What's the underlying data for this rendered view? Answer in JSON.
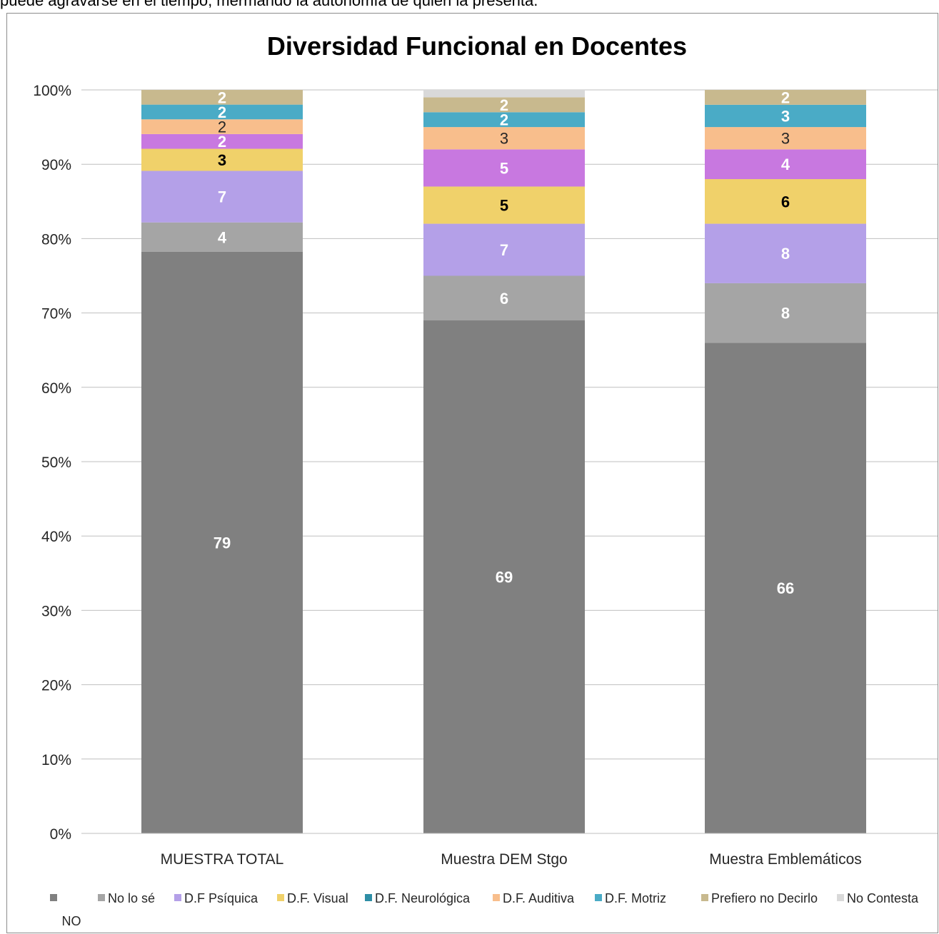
{
  "page_text": {
    "top_line": "puede agravarse en el tiempo, mermando la autonomía de quien la presenta."
  },
  "chart_data": {
    "type": "bar",
    "stacked": true,
    "percent_stacked": true,
    "title": "Diversidad Funcional en Docentes",
    "xlabel": "",
    "ylabel": "",
    "ylim": [
      0,
      100
    ],
    "y_ticks": [
      "0%",
      "10%",
      "20%",
      "30%",
      "40%",
      "50%",
      "60%",
      "70%",
      "80%",
      "90%",
      "100%"
    ],
    "grid": true,
    "legend_position": "bottom",
    "categories": [
      "MUESTRA TOTAL",
      "Muestra DEM Stgo",
      "Muestra Emblemáticos"
    ],
    "series": [
      {
        "name": "NO",
        "color": "#808080",
        "values": [
          79,
          69,
          66
        ],
        "labels": [
          "79",
          "69",
          "66"
        ],
        "label_color": "#ffffff",
        "label_bold": true
      },
      {
        "name": "No lo sé",
        "color": "#a5a5a5",
        "values": [
          4,
          6,
          8
        ],
        "labels": [
          "4",
          "6",
          "8"
        ],
        "label_color": "#ffffff",
        "label_bold": true
      },
      {
        "name": "D.F Psíquica",
        "color": "#b4a0e8",
        "values": [
          7,
          7,
          8
        ],
        "labels": [
          "7",
          "7",
          "8"
        ],
        "label_color": "#ffffff",
        "label_bold": true
      },
      {
        "name": "D.F. Visual",
        "color": "#f0d16a",
        "values": [
          3,
          5,
          6
        ],
        "labels": [
          "3",
          "5",
          "6"
        ],
        "label_color": "#000000",
        "label_bold": true
      },
      {
        "name": "D.F. Neurológica",
        "color": "#c878e0",
        "values": [
          2,
          5,
          4
        ],
        "labels": [
          "2",
          "5",
          "4"
        ],
        "label_color": "#ffffff",
        "label_bold": true
      },
      {
        "name": "D.F. Auditiva",
        "color": "#f8be8c",
        "values": [
          2,
          3,
          3
        ],
        "labels": [
          "2",
          "3",
          "3"
        ],
        "label_color": "#262626",
        "label_bold": false
      },
      {
        "name": "D.F. Motriz",
        "color": "#4aabc6",
        "values": [
          2,
          2,
          3
        ],
        "labels": [
          "2",
          "2",
          "3"
        ],
        "label_color": "#ffffff",
        "label_bold": true
      },
      {
        "name": "Prefiero no Decirlo",
        "color": "#c8b98e",
        "values": [
          2,
          2,
          2
        ],
        "labels": [
          "2",
          "2",
          "2"
        ],
        "label_color": "#ffffff",
        "label_bold": true
      },
      {
        "name": "No Contesta",
        "color": "#d9d9d9",
        "values": [
          0,
          1,
          0
        ],
        "labels": [
          "",
          "",
          ""
        ],
        "label_color": "#ffffff",
        "label_bold": true
      }
    ],
    "legend": [
      {
        "name": "NO",
        "color": "#808080"
      },
      {
        "name": "No lo sé",
        "color": "#a5a5a5"
      },
      {
        "name": "D.F Psíquica",
        "color": "#b4a0e8"
      },
      {
        "name": "D.F. Visual",
        "color": "#f0d16a"
      },
      {
        "name": "D.F. Neurológica",
        "color": "#2e8ea6"
      },
      {
        "name": "D.F. Auditiva",
        "color": "#f8be8c"
      },
      {
        "name": "D.F. Motriz",
        "color": "#4aabc6"
      },
      {
        "name": "Prefiero no Decirlo",
        "color": "#c8b98e"
      },
      {
        "name": "No Contesta",
        "color": "#d9d9d9"
      }
    ]
  }
}
